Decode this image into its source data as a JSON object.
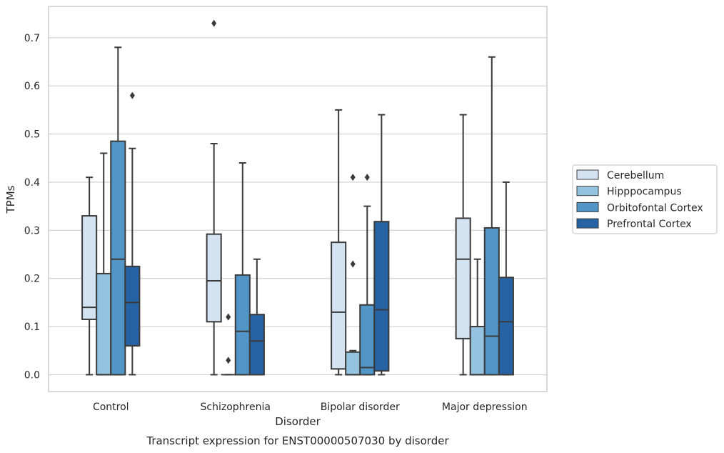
{
  "chart_data": {
    "type": "box",
    "title": "Transcript expression for ENST00000507030 by disorder",
    "xlabel": "Disorder",
    "ylabel": "TPMs",
    "ylim": [
      -0.035,
      0.765
    ],
    "yticks": [
      0.0,
      0.1,
      0.2,
      0.3,
      0.4,
      0.5,
      0.6,
      0.7
    ],
    "ytick_labels": [
      "0.0",
      "0.1",
      "0.2",
      "0.3",
      "0.4",
      "0.5",
      "0.6",
      "0.7"
    ],
    "grid": "horizontal",
    "legend_position": "right",
    "categories": [
      "Control",
      "Schizophrenia",
      "Bipolar disorder",
      "Major depression"
    ],
    "series": [
      {
        "name": "Cerebellum",
        "color": "#d4e3f2",
        "boxes": [
          {
            "whislo": 0.0,
            "q1": 0.115,
            "med": 0.14,
            "q3": 0.33,
            "whishi": 0.41,
            "fliers": []
          },
          {
            "whislo": 0.0,
            "q1": 0.11,
            "med": 0.195,
            "q3": 0.292,
            "whishi": 0.48,
            "fliers": [
              0.73
            ]
          },
          {
            "whislo": 0.0,
            "q1": 0.012,
            "med": 0.13,
            "q3": 0.275,
            "whishi": 0.55,
            "fliers": []
          },
          {
            "whislo": 0.0,
            "q1": 0.075,
            "med": 0.24,
            "q3": 0.325,
            "whishi": 0.54,
            "fliers": []
          }
        ]
      },
      {
        "name": "Hipppocampus",
        "color": "#94c3df",
        "boxes": [
          {
            "whislo": 0.0,
            "q1": 0.0,
            "med": 0.0,
            "q3": 0.21,
            "whishi": 0.46,
            "fliers": []
          },
          {
            "whislo": 0.0,
            "q1": 0.0,
            "med": 0.0,
            "q3": 0.0,
            "whishi": 0.0,
            "fliers": [
              0.03,
              0.12
            ]
          },
          {
            "whislo": 0.0,
            "q1": 0.0,
            "med": 0.0,
            "q3": 0.047,
            "whishi": 0.05,
            "fliers": [
              0.23,
              0.41
            ]
          },
          {
            "whislo": 0.0,
            "q1": 0.0,
            "med": 0.0,
            "q3": 0.1,
            "whishi": 0.24,
            "fliers": []
          }
        ]
      },
      {
        "name": "Orbitofontal Cortex",
        "color": "#5296c8",
        "boxes": [
          {
            "whislo": 0.0,
            "q1": 0.0,
            "med": 0.24,
            "q3": 0.485,
            "whishi": 0.68,
            "fliers": []
          },
          {
            "whislo": 0.0,
            "q1": 0.0,
            "med": 0.09,
            "q3": 0.207,
            "whishi": 0.44,
            "fliers": []
          },
          {
            "whislo": 0.0,
            "q1": 0.0,
            "med": 0.015,
            "q3": 0.145,
            "whishi": 0.35,
            "fliers": [
              0.41
            ]
          },
          {
            "whislo": 0.0,
            "q1": 0.0,
            "med": 0.08,
            "q3": 0.305,
            "whishi": 0.66,
            "fliers": []
          }
        ]
      },
      {
        "name": "Prefrontal Cortex",
        "color": "#2663a5",
        "boxes": [
          {
            "whislo": 0.0,
            "q1": 0.06,
            "med": 0.15,
            "q3": 0.225,
            "whishi": 0.47,
            "fliers": [
              0.58
            ]
          },
          {
            "whislo": 0.0,
            "q1": 0.0,
            "med": 0.07,
            "q3": 0.125,
            "whishi": 0.24,
            "fliers": []
          },
          {
            "whislo": 0.0,
            "q1": 0.008,
            "med": 0.135,
            "q3": 0.318,
            "whishi": 0.54,
            "fliers": []
          },
          {
            "whislo": 0.0,
            "q1": 0.0,
            "med": 0.11,
            "q3": 0.202,
            "whishi": 0.4,
            "fliers": []
          }
        ]
      }
    ]
  }
}
